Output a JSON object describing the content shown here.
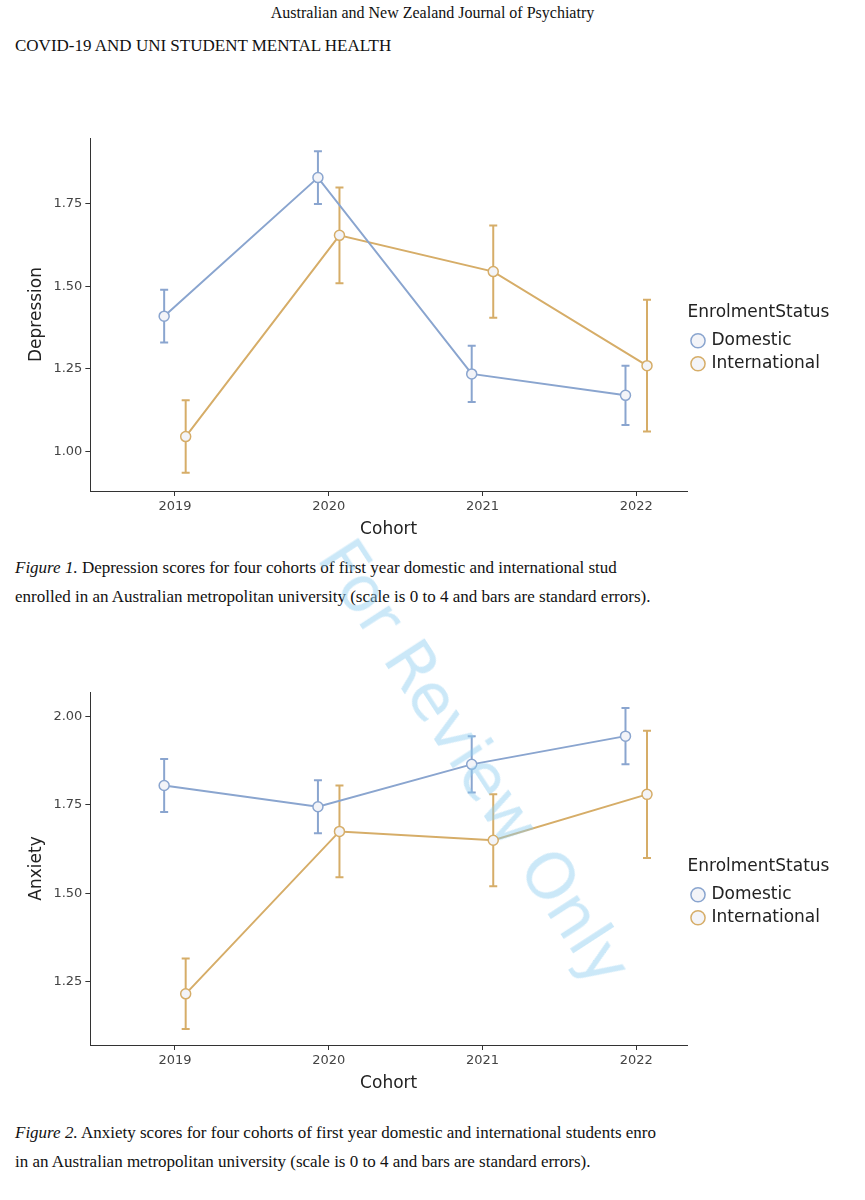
{
  "header": "Australian and New Zealand Journal of Psychiatry",
  "running_head": "COVID-19 AND UNI STUDENT MENTAL HEALTH",
  "watermark": "For Review Only",
  "chart_data": [
    {
      "type": "line",
      "categories": [
        "2019",
        "2020",
        "2021",
        "2022"
      ],
      "x_label": "Cohort",
      "y_label": "Depression",
      "legend_title": "EnrolmentStatus",
      "legend": "right",
      "grid": false,
      "marker": "circle",
      "ylim": [
        0.88,
        1.95
      ],
      "yticks": [
        {
          "value": 1,
          "label": "1.00"
        },
        {
          "value": 1.25,
          "label": "1.25"
        },
        {
          "value": 1.5,
          "label": "1.50"
        },
        {
          "value": 1.75,
          "label": "1.75"
        }
      ],
      "series": [
        {
          "name": "Domestic",
          "color": "#8aa5cf",
          "values": [
            1.41,
            1.83,
            1.235,
            1.17
          ],
          "errors": [
            0.08,
            0.08,
            0.085,
            0.09
          ]
        },
        {
          "name": "International",
          "color": "#d6ad68",
          "values": [
            1.045,
            1.655,
            1.545,
            1.26
          ],
          "errors": [
            0.11,
            0.145,
            0.14,
            0.2
          ]
        }
      ],
      "caption_label": "Figure 1.",
      "caption": [
        "Depression scores for four cohorts of first year domestic and international stud",
        "enrolled in an Australian metropolitan university (scale is 0 to 4 and bars are standard errors)."
      ]
    },
    {
      "type": "line",
      "categories": [
        "2019",
        "2020",
        "2021",
        "2022"
      ],
      "x_label": "Cohort",
      "y_label": "Anxiety",
      "legend_title": "EnrolmentStatus",
      "legend": "right",
      "grid": false,
      "marker": "circle",
      "ylim": [
        1.07,
        2.07
      ],
      "yticks": [
        {
          "value": 1.25,
          "label": "1.25"
        },
        {
          "value": 1.5,
          "label": "1.50"
        },
        {
          "value": 1.75,
          "label": "1.75"
        },
        {
          "value": 2,
          "label": "2.00"
        }
      ],
      "series": [
        {
          "name": "Domestic",
          "color": "#8aa5cf",
          "values": [
            1.805,
            1.745,
            1.865,
            1.945
          ],
          "errors": [
            0.075,
            0.075,
            0.08,
            0.08
          ]
        },
        {
          "name": "International",
          "color": "#d6ad68",
          "values": [
            1.215,
            1.675,
            1.65,
            1.78
          ],
          "errors": [
            0.1,
            0.13,
            0.13,
            0.18
          ]
        }
      ],
      "caption_label": "Figure 2.",
      "caption": [
        "Anxiety scores for four cohorts of first year domestic and international students enro",
        "in an Australian metropolitan university (scale is 0 to 4 and bars are standard errors)."
      ]
    }
  ]
}
